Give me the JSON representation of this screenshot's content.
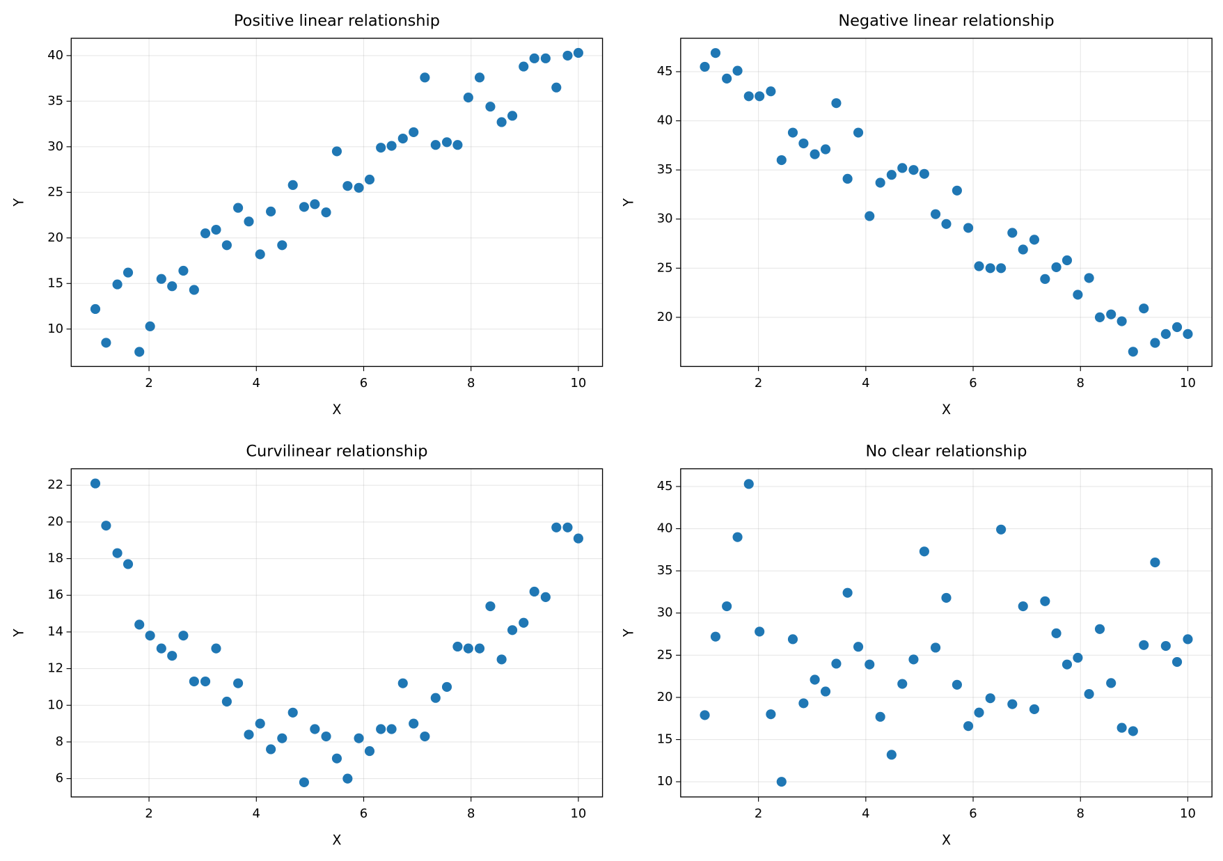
{
  "chart_data": [
    {
      "type": "scatter",
      "title": "Positive linear relationship",
      "xlabel": "X",
      "ylabel": "Y",
      "color": "#1f77b4",
      "grid": true,
      "x": [
        1,
        1.2,
        1.41,
        1.61,
        1.82,
        2.02,
        2.23,
        2.43,
        2.64,
        2.84,
        3.05,
        3.25,
        3.45,
        3.66,
        3.86,
        4.07,
        4.27,
        4.48,
        4.68,
        4.89,
        5.09,
        5.3,
        5.5,
        5.7,
        5.91,
        6.11,
        6.32,
        6.52,
        6.73,
        6.93,
        7.14,
        7.34,
        7.55,
        7.75,
        7.95,
        8.16,
        8.36,
        8.57,
        8.77,
        8.98,
        9.18,
        9.39,
        9.59,
        9.8,
        10
      ],
      "values": [
        12.2,
        8.5,
        14.9,
        16.2,
        7.5,
        10.3,
        15.5,
        14.7,
        16.4,
        14.3,
        20.5,
        20.9,
        19.2,
        23.3,
        21.8,
        18.2,
        22.9,
        19.2,
        25.8,
        23.4,
        23.7,
        22.8,
        29.5,
        25.7,
        25.5,
        26.4,
        29.9,
        30.1,
        30.9,
        31.6,
        37.6,
        30.2,
        30.5,
        30.2,
        35.4,
        37.6,
        34.4,
        32.7,
        33.4,
        38.8,
        39.7,
        39.7,
        36.5,
        40.0,
        40.3
      ],
      "xlim": [
        0.55,
        10.45
      ],
      "ylim": [
        5.9,
        41.9
      ],
      "xticks": [
        2,
        4,
        6,
        8,
        10
      ],
      "yticks": [
        10,
        15,
        20,
        25,
        30,
        35,
        40
      ]
    },
    {
      "type": "scatter",
      "title": "Negative linear relationship",
      "xlabel": "X",
      "ylabel": "Y",
      "color": "#1f77b4",
      "grid": true,
      "x": [
        1,
        1.2,
        1.41,
        1.61,
        1.82,
        2.02,
        2.23,
        2.43,
        2.64,
        2.84,
        3.05,
        3.25,
        3.45,
        3.66,
        3.86,
        4.07,
        4.27,
        4.48,
        4.68,
        4.89,
        5.09,
        5.3,
        5.5,
        5.7,
        5.91,
        6.11,
        6.32,
        6.52,
        6.73,
        6.93,
        7.14,
        7.34,
        7.55,
        7.75,
        7.95,
        8.16,
        8.36,
        8.57,
        8.77,
        8.98,
        9.18,
        9.39,
        9.59,
        9.8,
        10
      ],
      "values": [
        45.5,
        46.9,
        44.3,
        45.1,
        42.5,
        42.5,
        43.0,
        36.0,
        38.8,
        37.7,
        36.6,
        37.1,
        41.8,
        34.1,
        38.8,
        30.3,
        33.7,
        34.5,
        35.2,
        35.0,
        34.6,
        30.5,
        29.5,
        32.9,
        29.1,
        25.2,
        25.0,
        25.0,
        28.6,
        26.9,
        27.9,
        23.9,
        25.1,
        25.8,
        22.3,
        24.0,
        20.0,
        20.3,
        19.6,
        16.5,
        20.9,
        17.4,
        18.3,
        19.0,
        18.3
      ],
      "xlim": [
        0.55,
        10.45
      ],
      "ylim": [
        15.0,
        48.4
      ],
      "xticks": [
        2,
        4,
        6,
        8,
        10
      ],
      "yticks": [
        20,
        25,
        30,
        35,
        40,
        45
      ]
    },
    {
      "type": "scatter",
      "title": "Curvilinear relationship",
      "xlabel": "X",
      "ylabel": "Y",
      "color": "#1f77b4",
      "grid": true,
      "x": [
        1,
        1.2,
        1.41,
        1.61,
        1.82,
        2.02,
        2.23,
        2.43,
        2.64,
        2.84,
        3.05,
        3.25,
        3.45,
        3.66,
        3.86,
        4.07,
        4.27,
        4.48,
        4.68,
        4.89,
        5.09,
        5.3,
        5.5,
        5.7,
        5.91,
        6.11,
        6.32,
        6.52,
        6.73,
        6.93,
        7.14,
        7.34,
        7.55,
        7.75,
        7.95,
        8.16,
        8.36,
        8.57,
        8.77,
        8.98,
        9.18,
        9.39,
        9.59,
        9.8,
        10
      ],
      "values": [
        22.1,
        19.8,
        18.3,
        17.7,
        14.4,
        13.8,
        13.1,
        12.7,
        13.8,
        11.3,
        11.3,
        13.1,
        10.2,
        11.2,
        8.4,
        9.0,
        7.6,
        8.2,
        9.6,
        5.8,
        8.7,
        8.3,
        7.1,
        6.0,
        8.2,
        7.5,
        8.7,
        8.7,
        11.2,
        9.0,
        8.3,
        10.4,
        11.0,
        13.2,
        13.1,
        13.1,
        15.4,
        12.5,
        14.1,
        14.5,
        16.2,
        15.9,
        19.7,
        19.7,
        19.1
      ],
      "xlim": [
        0.55,
        10.45
      ],
      "ylim": [
        5.0,
        22.9
      ],
      "xticks": [
        2,
        4,
        6,
        8,
        10
      ],
      "yticks": [
        6,
        8,
        10,
        12,
        14,
        16,
        18,
        20,
        22
      ]
    },
    {
      "type": "scatter",
      "title": "No clear relationship",
      "xlabel": "X",
      "ylabel": "Y",
      "color": "#1f77b4",
      "grid": true,
      "x": [
        1,
        1.2,
        1.41,
        1.61,
        1.82,
        2.02,
        2.23,
        2.43,
        2.64,
        2.84,
        3.05,
        3.25,
        3.45,
        3.66,
        3.86,
        4.07,
        4.27,
        4.48,
        4.68,
        4.89,
        5.09,
        5.3,
        5.5,
        5.7,
        5.91,
        6.11,
        6.32,
        6.52,
        6.73,
        6.93,
        7.14,
        7.34,
        7.55,
        7.75,
        7.95,
        8.16,
        8.36,
        8.57,
        8.77,
        8.98,
        9.18,
        9.39,
        9.59,
        9.8,
        10
      ],
      "values": [
        17.9,
        27.2,
        30.8,
        39.0,
        45.3,
        27.8,
        18.0,
        10.0,
        26.9,
        19.3,
        22.1,
        20.7,
        24.0,
        32.4,
        26.0,
        23.9,
        17.7,
        13.2,
        21.6,
        24.5,
        37.3,
        25.9,
        31.8,
        21.5,
        16.6,
        18.2,
        19.9,
        39.9,
        19.2,
        30.8,
        18.6,
        31.4,
        27.6,
        23.9,
        24.7,
        20.4,
        28.1,
        21.7,
        16.4,
        16.0,
        26.2,
        36.0,
        26.1,
        24.2,
        26.9
      ],
      "xlim": [
        0.55,
        10.45
      ],
      "ylim": [
        8.2,
        47.1
      ],
      "xticks": [
        2,
        4,
        6,
        8,
        10
      ],
      "yticks": [
        10,
        15,
        20,
        25,
        30,
        35,
        40,
        45
      ]
    }
  ]
}
